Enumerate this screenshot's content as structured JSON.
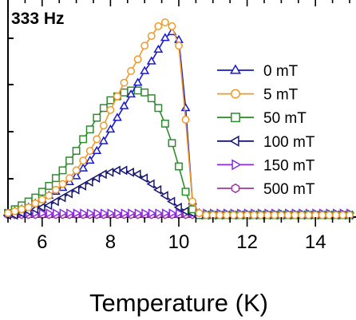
{
  "chart_data": {
    "type": "line",
    "annotation": "333 Hz",
    "xlabel": "Temperature (K)",
    "ylabel": "",
    "xlim": [
      5,
      15
    ],
    "ylim": [
      0,
      1
    ],
    "xticks": [
      6,
      8,
      10,
      12,
      14
    ],
    "xtick_labels": [
      "6",
      "8",
      "10",
      "12",
      "14"
    ],
    "y_tick_labels_visible": false,
    "legend_position": "right",
    "series": [
      {
        "name": "0 mT",
        "color": "#1a1acd",
        "marker": "triangle-up",
        "x": [
          5.0,
          5.2,
          5.4,
          5.6,
          5.8,
          6.0,
          6.2,
          6.4,
          6.6,
          6.8,
          7.0,
          7.2,
          7.4,
          7.6,
          7.8,
          8.0,
          8.2,
          8.4,
          8.6,
          8.8,
          9.0,
          9.2,
          9.4,
          9.6,
          9.8,
          10.0,
          10.2,
          10.4,
          10.6,
          10.8,
          11.0,
          11.2,
          11.4,
          11.6,
          11.8,
          12.0,
          12.2,
          12.4,
          12.6,
          12.8,
          13.0,
          13.2,
          13.4,
          13.6,
          13.8,
          14.0,
          14.2,
          14.4,
          14.6,
          14.8,
          15.0
        ],
        "y": [
          0.02,
          0.03,
          0.04,
          0.05,
          0.07,
          0.09,
          0.11,
          0.13,
          0.15,
          0.18,
          0.21,
          0.25,
          0.29,
          0.34,
          0.39,
          0.45,
          0.51,
          0.57,
          0.63,
          0.69,
          0.75,
          0.8,
          0.86,
          0.92,
          0.95,
          0.91,
          0.56,
          0.08,
          0.02,
          0.01,
          0.01,
          0.01,
          0.01,
          0.01,
          0.01,
          0.01,
          0.01,
          0.01,
          0.01,
          0.01,
          0.01,
          0.01,
          0.01,
          0.01,
          0.01,
          0.01,
          0.01,
          0.01,
          0.01,
          0.01,
          0.01
        ]
      },
      {
        "name": "5 mT",
        "color": "#ee9a2a",
        "marker": "circle",
        "x": [
          5.0,
          5.2,
          5.4,
          5.6,
          5.8,
          6.0,
          6.2,
          6.4,
          6.6,
          6.8,
          7.0,
          7.2,
          7.4,
          7.6,
          7.8,
          8.0,
          8.2,
          8.4,
          8.6,
          8.8,
          9.0,
          9.2,
          9.4,
          9.6,
          9.8,
          10.0,
          10.2,
          10.4,
          10.6,
          10.8,
          11.0,
          11.2,
          11.4,
          11.6,
          11.8,
          12.0,
          12.2,
          12.4,
          12.6,
          12.8,
          13.0,
          13.2,
          13.4,
          13.6,
          13.8,
          14.0,
          14.2,
          14.4,
          14.6,
          14.8,
          15.0
        ],
        "y": [
          0.02,
          0.03,
          0.04,
          0.05,
          0.07,
          0.09,
          0.11,
          0.14,
          0.17,
          0.2,
          0.24,
          0.29,
          0.34,
          0.4,
          0.47,
          0.55,
          0.62,
          0.69,
          0.75,
          0.81,
          0.88,
          0.93,
          0.98,
          1.0,
          0.98,
          0.88,
          0.5,
          0.08,
          0.02,
          0.01,
          0.01,
          0.01,
          0.01,
          0.01,
          0.01,
          0.01,
          0.01,
          0.01,
          0.01,
          0.01,
          0.01,
          0.01,
          0.01,
          0.01,
          0.01,
          0.01,
          0.01,
          0.01,
          0.01,
          0.01,
          0.01
        ]
      },
      {
        "name": "50 mT",
        "color": "#2e8b2e",
        "marker": "square",
        "x": [
          5.0,
          5.2,
          5.4,
          5.6,
          5.8,
          6.0,
          6.2,
          6.4,
          6.6,
          6.8,
          7.0,
          7.2,
          7.4,
          7.6,
          7.8,
          8.0,
          8.2,
          8.4,
          8.6,
          8.8,
          9.0,
          9.2,
          9.4,
          9.6,
          9.8,
          10.0,
          10.2,
          10.4,
          10.6,
          10.8,
          11.0,
          11.2,
          11.4,
          11.6,
          11.8,
          12.0,
          12.2,
          12.4,
          12.6,
          12.8,
          13.0,
          13.2,
          13.4,
          13.6,
          13.8,
          14.0,
          14.2,
          14.4,
          14.6,
          14.8,
          15.0
        ],
        "y": [
          0.02,
          0.04,
          0.06,
          0.08,
          0.1,
          0.13,
          0.16,
          0.2,
          0.24,
          0.29,
          0.34,
          0.4,
          0.45,
          0.51,
          0.56,
          0.6,
          0.62,
          0.64,
          0.65,
          0.65,
          0.64,
          0.61,
          0.56,
          0.48,
          0.38,
          0.26,
          0.13,
          0.04,
          0.01,
          0.01,
          0.01,
          0.01,
          0.01,
          0.01,
          0.01,
          0.01,
          0.01,
          0.01,
          0.01,
          0.01,
          0.01,
          0.01,
          0.01,
          0.01,
          0.01,
          0.01,
          0.01,
          0.01,
          0.01,
          0.01,
          0.01
        ]
      },
      {
        "name": "100 mT",
        "color": "#16166e",
        "marker": "triangle-left",
        "x": [
          5.0,
          5.2,
          5.4,
          5.6,
          5.8,
          6.0,
          6.2,
          6.4,
          6.6,
          6.8,
          7.0,
          7.2,
          7.4,
          7.6,
          7.8,
          8.0,
          8.2,
          8.4,
          8.6,
          8.8,
          9.0,
          9.2,
          9.4,
          9.6,
          9.8,
          10.0,
          10.2,
          10.4,
          10.6,
          10.8,
          11.0,
          11.2,
          11.4,
          11.6,
          11.8,
          12.0,
          12.2,
          12.4,
          12.6,
          12.8,
          13.0,
          13.2,
          13.4,
          13.6,
          13.8,
          14.0,
          14.2,
          14.4,
          14.6,
          14.8,
          15.0
        ],
        "y": [
          0.01,
          0.01,
          0.02,
          0.03,
          0.04,
          0.05,
          0.06,
          0.08,
          0.1,
          0.12,
          0.14,
          0.16,
          0.18,
          0.2,
          0.22,
          0.23,
          0.24,
          0.24,
          0.23,
          0.22,
          0.2,
          0.17,
          0.14,
          0.11,
          0.08,
          0.05,
          0.03,
          0.02,
          0.01,
          0.01,
          0.01,
          0.01,
          0.01,
          0.01,
          0.01,
          0.01,
          0.01,
          0.01,
          0.01,
          0.01,
          0.01,
          0.01,
          0.01,
          0.01,
          0.01,
          0.01,
          0.01,
          0.01,
          0.01,
          0.01,
          0.01
        ]
      },
      {
        "name": "150 mT",
        "color": "#8a2be2",
        "marker": "triangle-right",
        "x": [
          5.0,
          5.2,
          5.4,
          5.6,
          5.8,
          6.0,
          6.2,
          6.4,
          6.6,
          6.8,
          7.0,
          7.2,
          7.4,
          7.6,
          7.8,
          8.0,
          8.2,
          8.4,
          8.6,
          8.8,
          9.0,
          9.2,
          9.4,
          9.6,
          9.8,
          10.0,
          10.2,
          10.4,
          10.6,
          10.8,
          11.0,
          11.2,
          11.4,
          11.6,
          11.8,
          12.0,
          12.2,
          12.4,
          12.6,
          12.8,
          13.0,
          13.2,
          13.4,
          13.6,
          13.8,
          14.0,
          14.2,
          14.4,
          14.6,
          14.8,
          15.0
        ],
        "y": [
          0.02,
          0.02,
          0.02,
          0.02,
          0.02,
          0.02,
          0.02,
          0.02,
          0.02,
          0.02,
          0.02,
          0.02,
          0.02,
          0.02,
          0.02,
          0.02,
          0.02,
          0.02,
          0.02,
          0.02,
          0.02,
          0.02,
          0.02,
          0.02,
          0.02,
          0.02,
          0.02,
          0.02,
          0.02,
          0.02,
          0.02,
          0.02,
          0.02,
          0.02,
          0.02,
          0.02,
          0.02,
          0.02,
          0.02,
          0.02,
          0.02,
          0.02,
          0.02,
          0.02,
          0.02,
          0.02,
          0.02,
          0.02,
          0.02,
          0.02,
          0.02
        ]
      },
      {
        "name": "500 mT",
        "color": "#9a3a9a",
        "marker": "hexagon",
        "x": [
          5.0,
          5.2,
          5.4,
          5.6,
          5.8,
          6.0,
          6.2,
          6.4,
          6.6,
          6.8,
          7.0,
          7.2,
          7.4,
          7.6,
          7.8,
          8.0,
          8.2,
          8.4,
          8.6,
          8.8,
          9.0,
          9.2,
          9.4,
          9.6,
          9.8,
          10.0,
          10.2,
          10.4,
          10.6,
          10.8,
          11.0,
          11.2,
          11.4,
          11.6,
          11.8,
          12.0,
          12.2,
          12.4,
          12.6,
          12.8,
          13.0,
          13.2,
          13.4,
          13.6,
          13.8,
          14.0,
          14.2,
          14.4,
          14.6,
          14.8,
          15.0
        ],
        "y": [
          0.01,
          0.01,
          0.01,
          0.01,
          0.01,
          0.01,
          0.01,
          0.01,
          0.01,
          0.01,
          0.01,
          0.01,
          0.01,
          0.01,
          0.01,
          0.01,
          0.01,
          0.01,
          0.01,
          0.01,
          0.01,
          0.01,
          0.01,
          0.01,
          0.01,
          0.01,
          0.01,
          0.01,
          0.01,
          0.01,
          0.01,
          0.01,
          0.01,
          0.01,
          0.01,
          0.01,
          0.01,
          0.01,
          0.01,
          0.01,
          0.01,
          0.01,
          0.01,
          0.01,
          0.01,
          0.01,
          0.01,
          0.01,
          0.01,
          0.01,
          0.01
        ]
      }
    ]
  }
}
